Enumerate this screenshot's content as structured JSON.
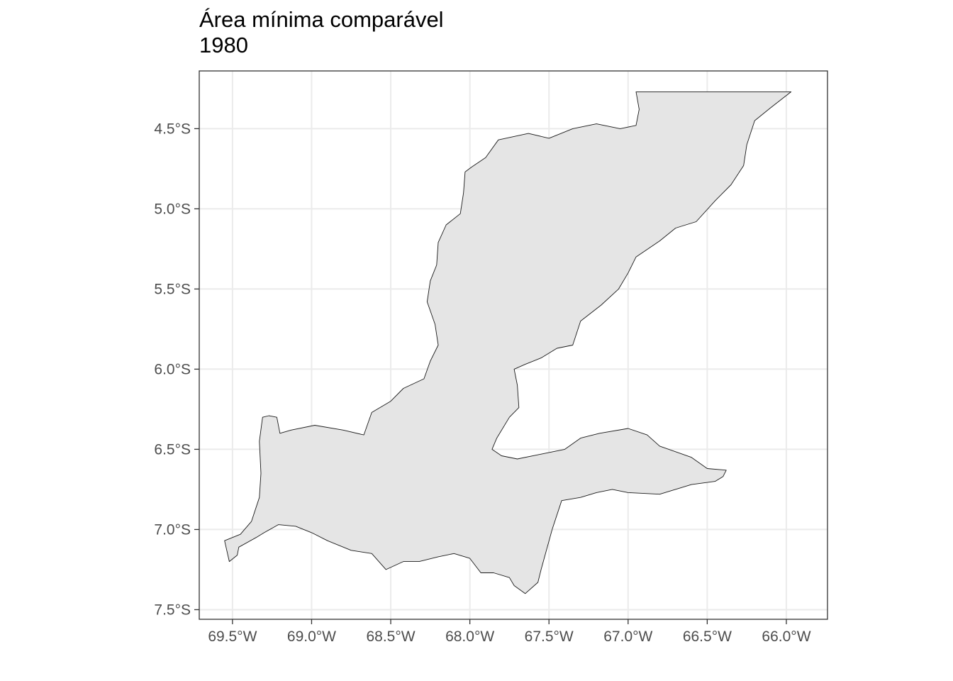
{
  "title": "Área mínima comparável",
  "subtitle": "1980",
  "colors": {
    "region_fill": "#e5e5e5",
    "region_stroke": "#1a1a1a",
    "grid": "#ebebeb",
    "panel_border": "#333333",
    "tick_label": "#4d4d4d",
    "background": "#ffffff"
  },
  "axes": {
    "x_ticks": [
      {
        "value": -69.5,
        "label": "69.5°W"
      },
      {
        "value": -69.0,
        "label": "69.0°W"
      },
      {
        "value": -68.5,
        "label": "68.5°W"
      },
      {
        "value": -68.0,
        "label": "68.0°W"
      },
      {
        "value": -67.5,
        "label": "67.5°W"
      },
      {
        "value": -67.0,
        "label": "67.0°W"
      },
      {
        "value": -66.5,
        "label": "66.5°W"
      },
      {
        "value": -66.0,
        "label": "66.0°W"
      }
    ],
    "y_ticks": [
      {
        "value": -4.5,
        "label": "4.5°S"
      },
      {
        "value": -5.0,
        "label": "5.0°S"
      },
      {
        "value": -5.5,
        "label": "5.5°S"
      },
      {
        "value": -6.0,
        "label": "6.0°S"
      },
      {
        "value": -6.5,
        "label": "6.5°S"
      },
      {
        "value": -7.0,
        "label": "7.0°S"
      },
      {
        "value": -7.5,
        "label": "7.5°S"
      }
    ]
  },
  "map": {
    "grid": "on",
    "legend": "none",
    "xlim": [
      -69.71,
      -65.74
    ],
    "ylim": [
      -7.56,
      -4.14
    ],
    "region_outline": [
      [
        -69.13,
        -6.38
      ],
      [
        -68.98,
        -6.35
      ],
      [
        -68.8,
        -6.38
      ],
      [
        -68.67,
        -6.41
      ],
      [
        -68.62,
        -6.27
      ],
      [
        -68.5,
        -6.2
      ],
      [
        -68.42,
        -6.12
      ],
      [
        -68.29,
        -6.06
      ],
      [
        -68.25,
        -5.95
      ],
      [
        -68.2,
        -5.85
      ],
      [
        -68.22,
        -5.72
      ],
      [
        -68.27,
        -5.58
      ],
      [
        -68.25,
        -5.45
      ],
      [
        -68.21,
        -5.35
      ],
      [
        -68.2,
        -5.21
      ],
      [
        -68.15,
        -5.1
      ],
      [
        -68.06,
        -5.03
      ],
      [
        -68.04,
        -4.9
      ],
      [
        -68.03,
        -4.77
      ],
      [
        -67.99,
        -4.74
      ],
      [
        -67.9,
        -4.68
      ],
      [
        -67.82,
        -4.57
      ],
      [
        -67.63,
        -4.53
      ],
      [
        -67.5,
        -4.56
      ],
      [
        -67.35,
        -4.5
      ],
      [
        -67.2,
        -4.47
      ],
      [
        -67.05,
        -4.5
      ],
      [
        -66.95,
        -4.48
      ],
      [
        -66.93,
        -4.38
      ],
      [
        -66.95,
        -4.27
      ],
      [
        -65.97,
        -4.27
      ],
      [
        -66.1,
        -4.37
      ],
      [
        -66.2,
        -4.45
      ],
      [
        -66.25,
        -4.6
      ],
      [
        -66.27,
        -4.73
      ],
      [
        -66.35,
        -4.85
      ],
      [
        -66.45,
        -4.95
      ],
      [
        -66.57,
        -5.08
      ],
      [
        -66.7,
        -5.12
      ],
      [
        -66.8,
        -5.2
      ],
      [
        -66.95,
        -5.3
      ],
      [
        -67.0,
        -5.4
      ],
      [
        -67.06,
        -5.5
      ],
      [
        -67.17,
        -5.6
      ],
      [
        -67.3,
        -5.7
      ],
      [
        -67.35,
        -5.85
      ],
      [
        -67.45,
        -5.87
      ],
      [
        -67.55,
        -5.93
      ],
      [
        -67.65,
        -5.97
      ],
      [
        -67.72,
        -6.0
      ],
      [
        -67.7,
        -6.1
      ],
      [
        -67.69,
        -6.24
      ],
      [
        -67.75,
        -6.3
      ],
      [
        -67.83,
        -6.43
      ],
      [
        -67.86,
        -6.5
      ],
      [
        -67.8,
        -6.54
      ],
      [
        -67.7,
        -6.56
      ],
      [
        -67.55,
        -6.53
      ],
      [
        -67.4,
        -6.5
      ],
      [
        -67.3,
        -6.43
      ],
      [
        -67.18,
        -6.4
      ],
      [
        -67.0,
        -6.37
      ],
      [
        -66.88,
        -6.41
      ],
      [
        -66.8,
        -6.48
      ],
      [
        -66.6,
        -6.55
      ],
      [
        -66.5,
        -6.62
      ],
      [
        -66.38,
        -6.63
      ],
      [
        -66.4,
        -6.67
      ],
      [
        -66.45,
        -6.7
      ],
      [
        -66.6,
        -6.72
      ],
      [
        -66.8,
        -6.78
      ],
      [
        -67.0,
        -6.77
      ],
      [
        -67.1,
        -6.75
      ],
      [
        -67.2,
        -6.77
      ],
      [
        -67.3,
        -6.8
      ],
      [
        -67.42,
        -6.82
      ],
      [
        -67.48,
        -7.0
      ],
      [
        -67.55,
        -7.25
      ],
      [
        -67.57,
        -7.33
      ],
      [
        -67.65,
        -7.4
      ],
      [
        -67.72,
        -7.35
      ],
      [
        -67.75,
        -7.3
      ],
      [
        -67.85,
        -7.27
      ],
      [
        -67.93,
        -7.27
      ],
      [
        -68.0,
        -7.18
      ],
      [
        -68.1,
        -7.15
      ],
      [
        -68.2,
        -7.17
      ],
      [
        -68.32,
        -7.2
      ],
      [
        -68.42,
        -7.2
      ],
      [
        -68.53,
        -7.25
      ],
      [
        -68.62,
        -7.15
      ],
      [
        -68.75,
        -7.13
      ],
      [
        -68.9,
        -7.07
      ],
      [
        -69.0,
        -7.02
      ],
      [
        -69.1,
        -6.98
      ],
      [
        -69.21,
        -6.97
      ],
      [
        -69.3,
        -7.02
      ],
      [
        -69.35,
        -7.05
      ],
      [
        -69.46,
        -7.11
      ],
      [
        -69.47,
        -7.16
      ],
      [
        -69.52,
        -7.2
      ],
      [
        -69.55,
        -7.07
      ],
      [
        -69.45,
        -7.03
      ],
      [
        -69.38,
        -6.95
      ],
      [
        -69.33,
        -6.8
      ],
      [
        -69.32,
        -6.65
      ],
      [
        -69.33,
        -6.45
      ],
      [
        -69.31,
        -6.3
      ],
      [
        -69.27,
        -6.29
      ],
      [
        -69.22,
        -6.3
      ],
      [
        -69.2,
        -6.4
      ],
      [
        -69.13,
        -6.38
      ]
    ]
  }
}
